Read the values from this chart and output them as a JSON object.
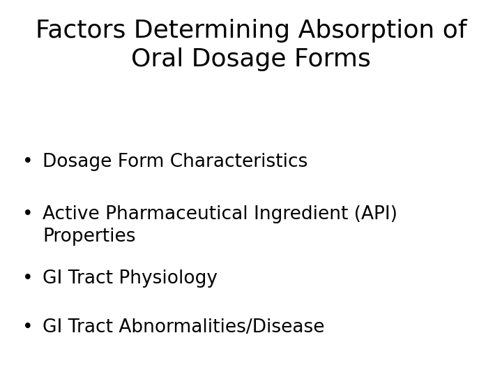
{
  "title_line1": "Factors Determining Absorption of",
  "title_line2": "Oral Dosage Forms",
  "bullet_items": [
    "Dosage Form Characteristics",
    "Active Pharmaceutical Ingredient (API)\nProperties",
    "GI Tract Physiology",
    "GI Tract Abnormalities/Disease"
  ],
  "background_color": "#ffffff",
  "text_color": "#000000",
  "title_fontsize": 26,
  "bullet_fontsize": 19,
  "font_family": "DejaVu Sans"
}
